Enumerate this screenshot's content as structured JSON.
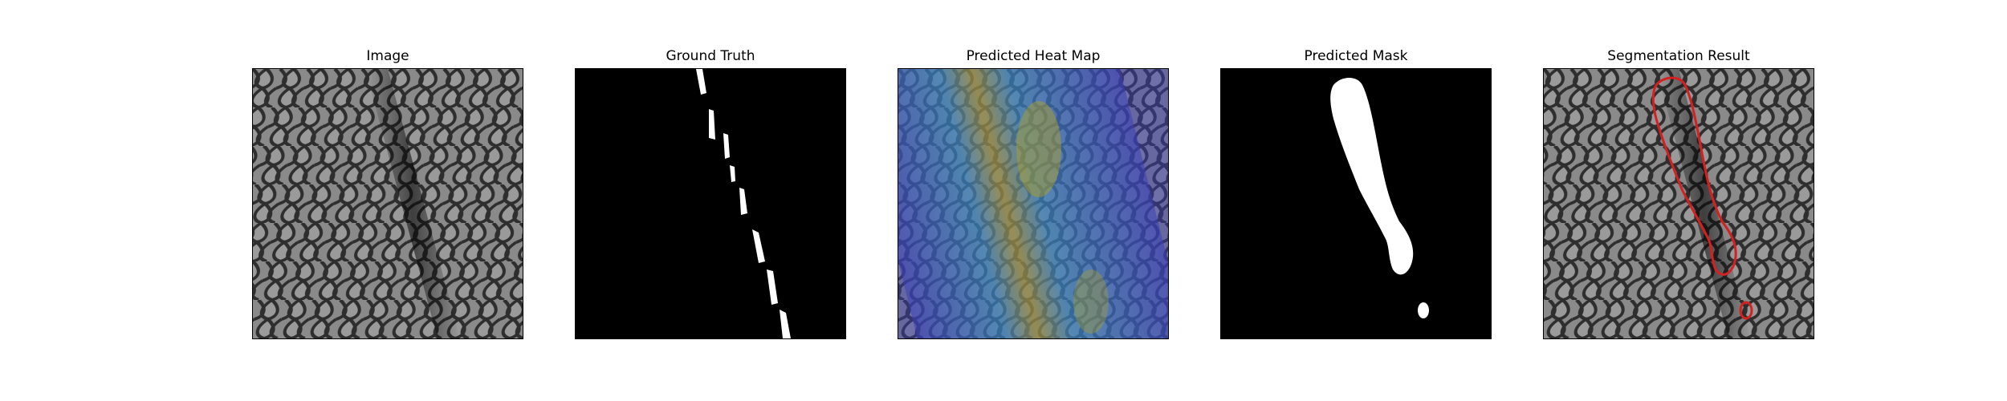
{
  "panels": [
    {
      "id": "image",
      "title": "Image"
    },
    {
      "id": "ground-truth",
      "title": "Ground Truth"
    },
    {
      "id": "heatmap",
      "title": "Predicted Heat Map"
    },
    {
      "id": "mask",
      "title": "Predicted Mask"
    },
    {
      "id": "segmentation",
      "title": "Segmentation Result"
    }
  ],
  "colors": {
    "texture_fill": "#8a8a8a",
    "texture_line": "#2e2e2e",
    "mask_white": "#ffffff",
    "background_black": "#000000",
    "contour_red": "#d62020",
    "heat_low": "#3a3fb8",
    "heat_high": "#b5a21c"
  }
}
